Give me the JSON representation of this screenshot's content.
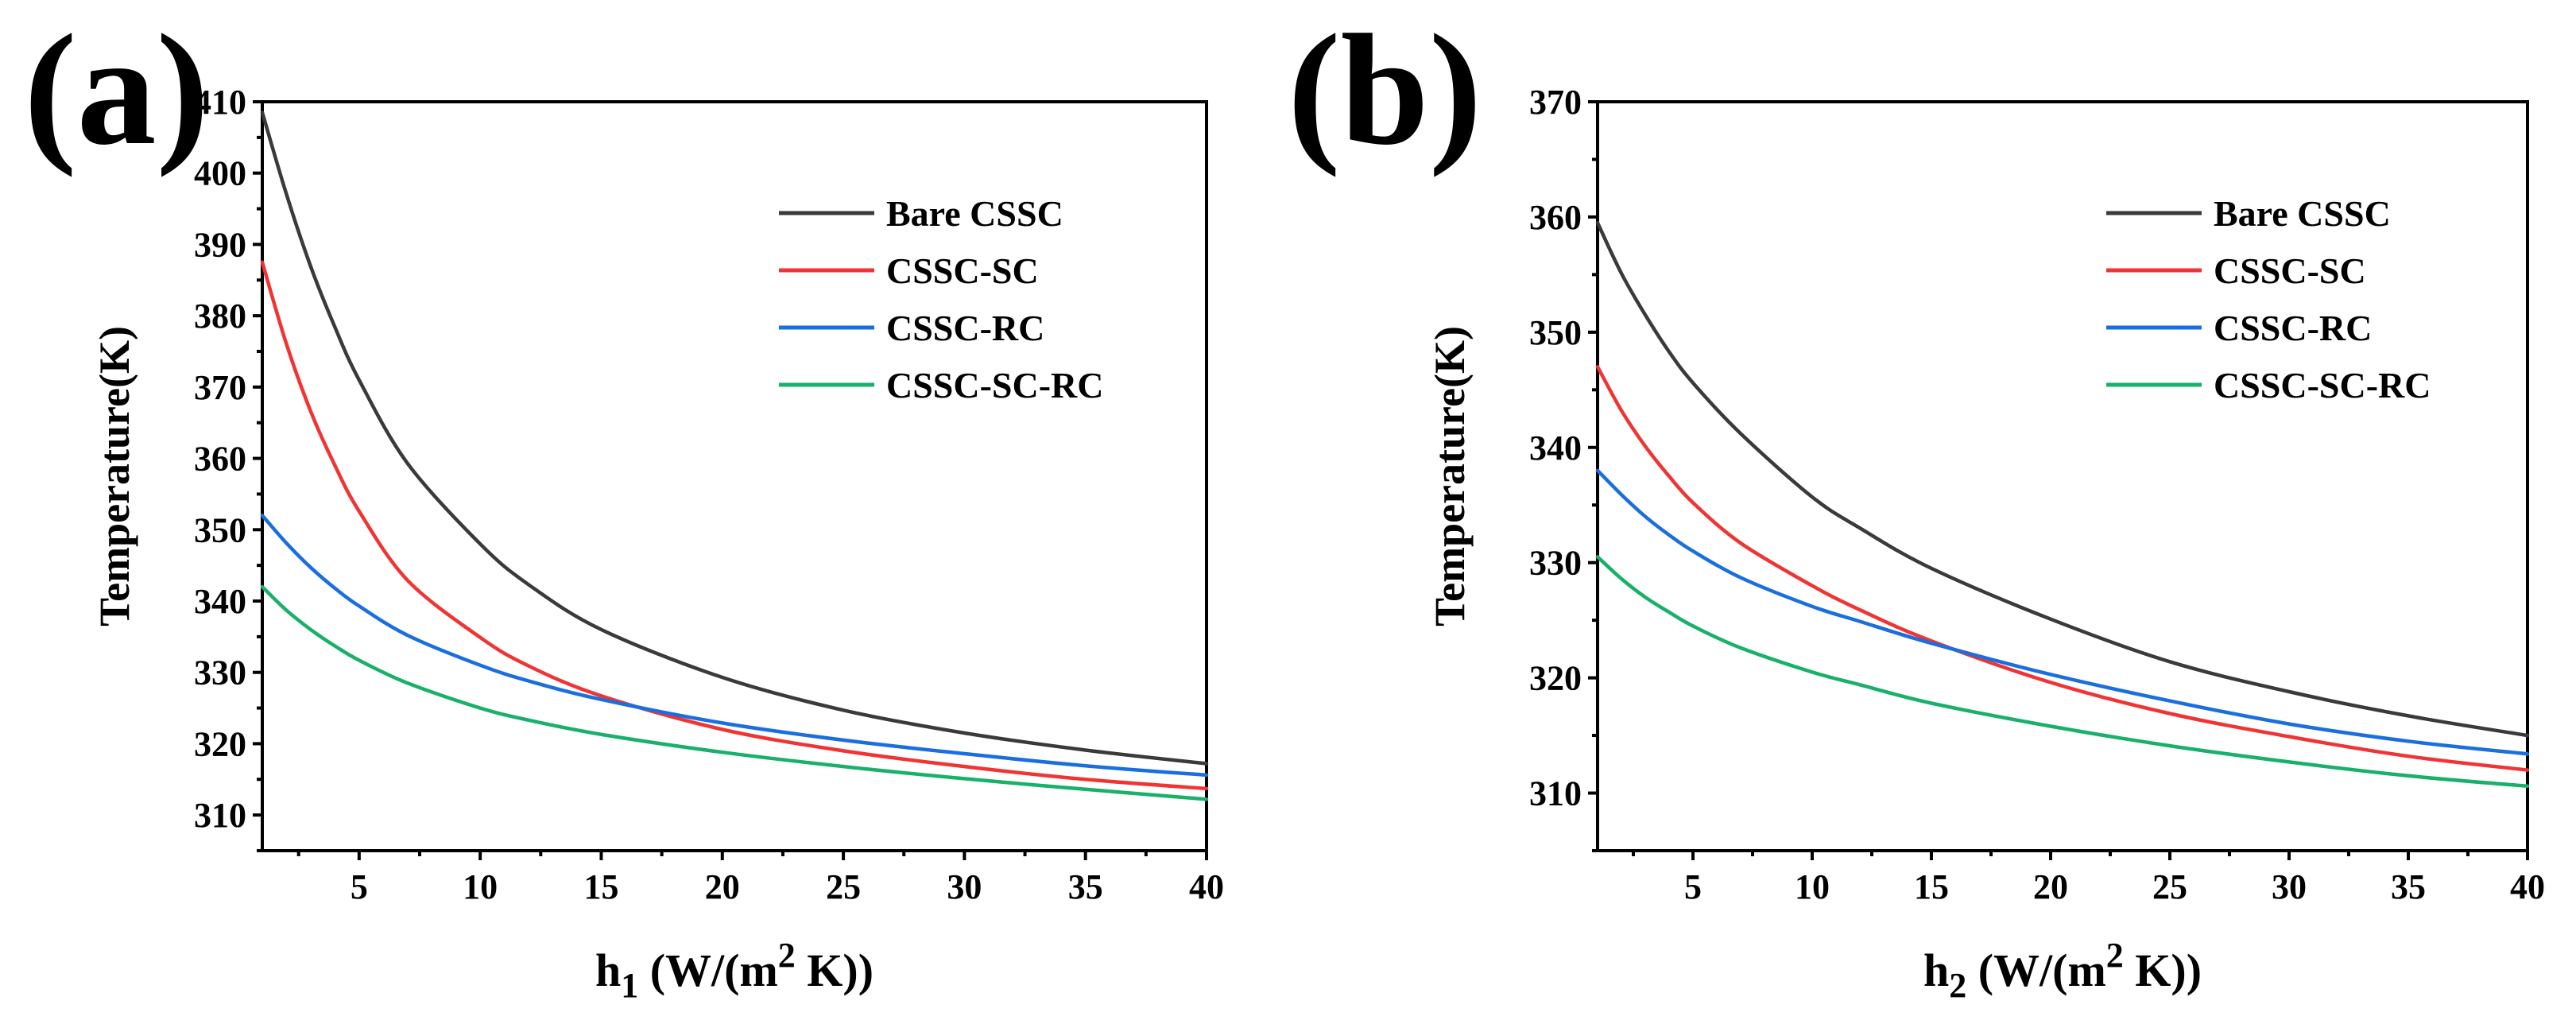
{
  "chart_data": [
    {
      "type": "line",
      "panel_label": "(a)",
      "title": "",
      "xlabel": "h1 (W/(m2 K))",
      "xlabel_parts": {
        "base": "h",
        "sub": "1",
        "pre": " (W/(m",
        "sup": "2",
        "post": " K))"
      },
      "ylabel": "Temperature(K)",
      "xlim": [
        1,
        40
      ],
      "ylim": [
        305,
        410
      ],
      "xticks": [
        5,
        10,
        15,
        20,
        25,
        30,
        35,
        40
      ],
      "yticks": [
        310,
        320,
        330,
        340,
        350,
        360,
        370,
        380,
        390,
        400,
        410
      ],
      "legend_position": "upper-right",
      "grid": false,
      "x": [
        1,
        2,
        3,
        4,
        5,
        7,
        10,
        12,
        15,
        20,
        25,
        30,
        35,
        40
      ],
      "series": [
        {
          "name": "Bare CSSC",
          "color": "#3a3a3a",
          "values": [
            408.5,
            397.0,
            386.9,
            378.4,
            371.0,
            359.3,
            348.0,
            342.3,
            336.0,
            329.3,
            324.7,
            321.5,
            319.1,
            317.2
          ]
        },
        {
          "name": "CSSC-SC",
          "color": "#f03434",
          "values": [
            387.5,
            376.0,
            366.6,
            359.0,
            352.6,
            342.9,
            334.9,
            330.9,
            326.7,
            322.0,
            319.0,
            316.8,
            315.0,
            313.7
          ]
        },
        {
          "name": "CSSC-RC",
          "color": "#1a6ee0",
          "values": [
            352.0,
            348.1,
            344.7,
            341.8,
            339.3,
            335.2,
            331.0,
            328.8,
            326.2,
            322.9,
            320.5,
            318.6,
            316.9,
            315.6
          ]
        },
        {
          "name": "CSSC-SC-RC",
          "color": "#19b06a",
          "values": [
            342.0,
            338.7,
            336.0,
            333.7,
            331.7,
            328.5,
            325.0,
            323.3,
            321.3,
            318.8,
            316.8,
            315.1,
            313.6,
            312.2
          ]
        }
      ]
    },
    {
      "type": "line",
      "panel_label": "(b)",
      "title": "",
      "xlabel": "h2 (W/(m2 K))",
      "xlabel_parts": {
        "base": "h",
        "sub": "2",
        "pre": " (W/(m",
        "sup": "2",
        "post": " K))"
      },
      "ylabel": "Temperature(K)",
      "xlim": [
        1,
        40
      ],
      "ylim": [
        305,
        370
      ],
      "xticks": [
        5,
        10,
        15,
        20,
        25,
        30,
        35,
        40
      ],
      "yticks": [
        310,
        320,
        330,
        340,
        350,
        360,
        370
      ],
      "legend_position": "upper-right",
      "grid": false,
      "x": [
        1,
        2,
        3,
        4,
        5,
        7,
        10,
        12,
        15,
        20,
        25,
        30,
        35,
        40
      ],
      "series": [
        {
          "name": "Bare CSSC",
          "color": "#3a3a3a",
          "values": [
            359.5,
            355.1,
            351.5,
            348.3,
            345.6,
            341.2,
            335.7,
            333.0,
            329.5,
            325.1,
            321.4,
            318.8,
            316.7,
            315.0
          ]
        },
        {
          "name": "CSSC-SC",
          "color": "#f03434",
          "values": [
            347.0,
            343.2,
            340.1,
            337.5,
            335.2,
            331.7,
            328.0,
            325.9,
            323.2,
            319.6,
            316.9,
            314.9,
            313.2,
            312.0
          ]
        },
        {
          "name": "CSSC-RC",
          "color": "#1a6ee0",
          "values": [
            338.0,
            335.9,
            334.0,
            332.4,
            331.0,
            328.7,
            326.2,
            324.9,
            323.0,
            320.3,
            318.0,
            316.0,
            314.5,
            313.4
          ]
        },
        {
          "name": "CSSC-SC-RC",
          "color": "#19b06a",
          "values": [
            330.5,
            328.6,
            327.0,
            325.7,
            324.5,
            322.6,
            320.5,
            319.4,
            317.8,
            315.8,
            314.1,
            312.7,
            311.5,
            310.6
          ]
        }
      ]
    }
  ]
}
